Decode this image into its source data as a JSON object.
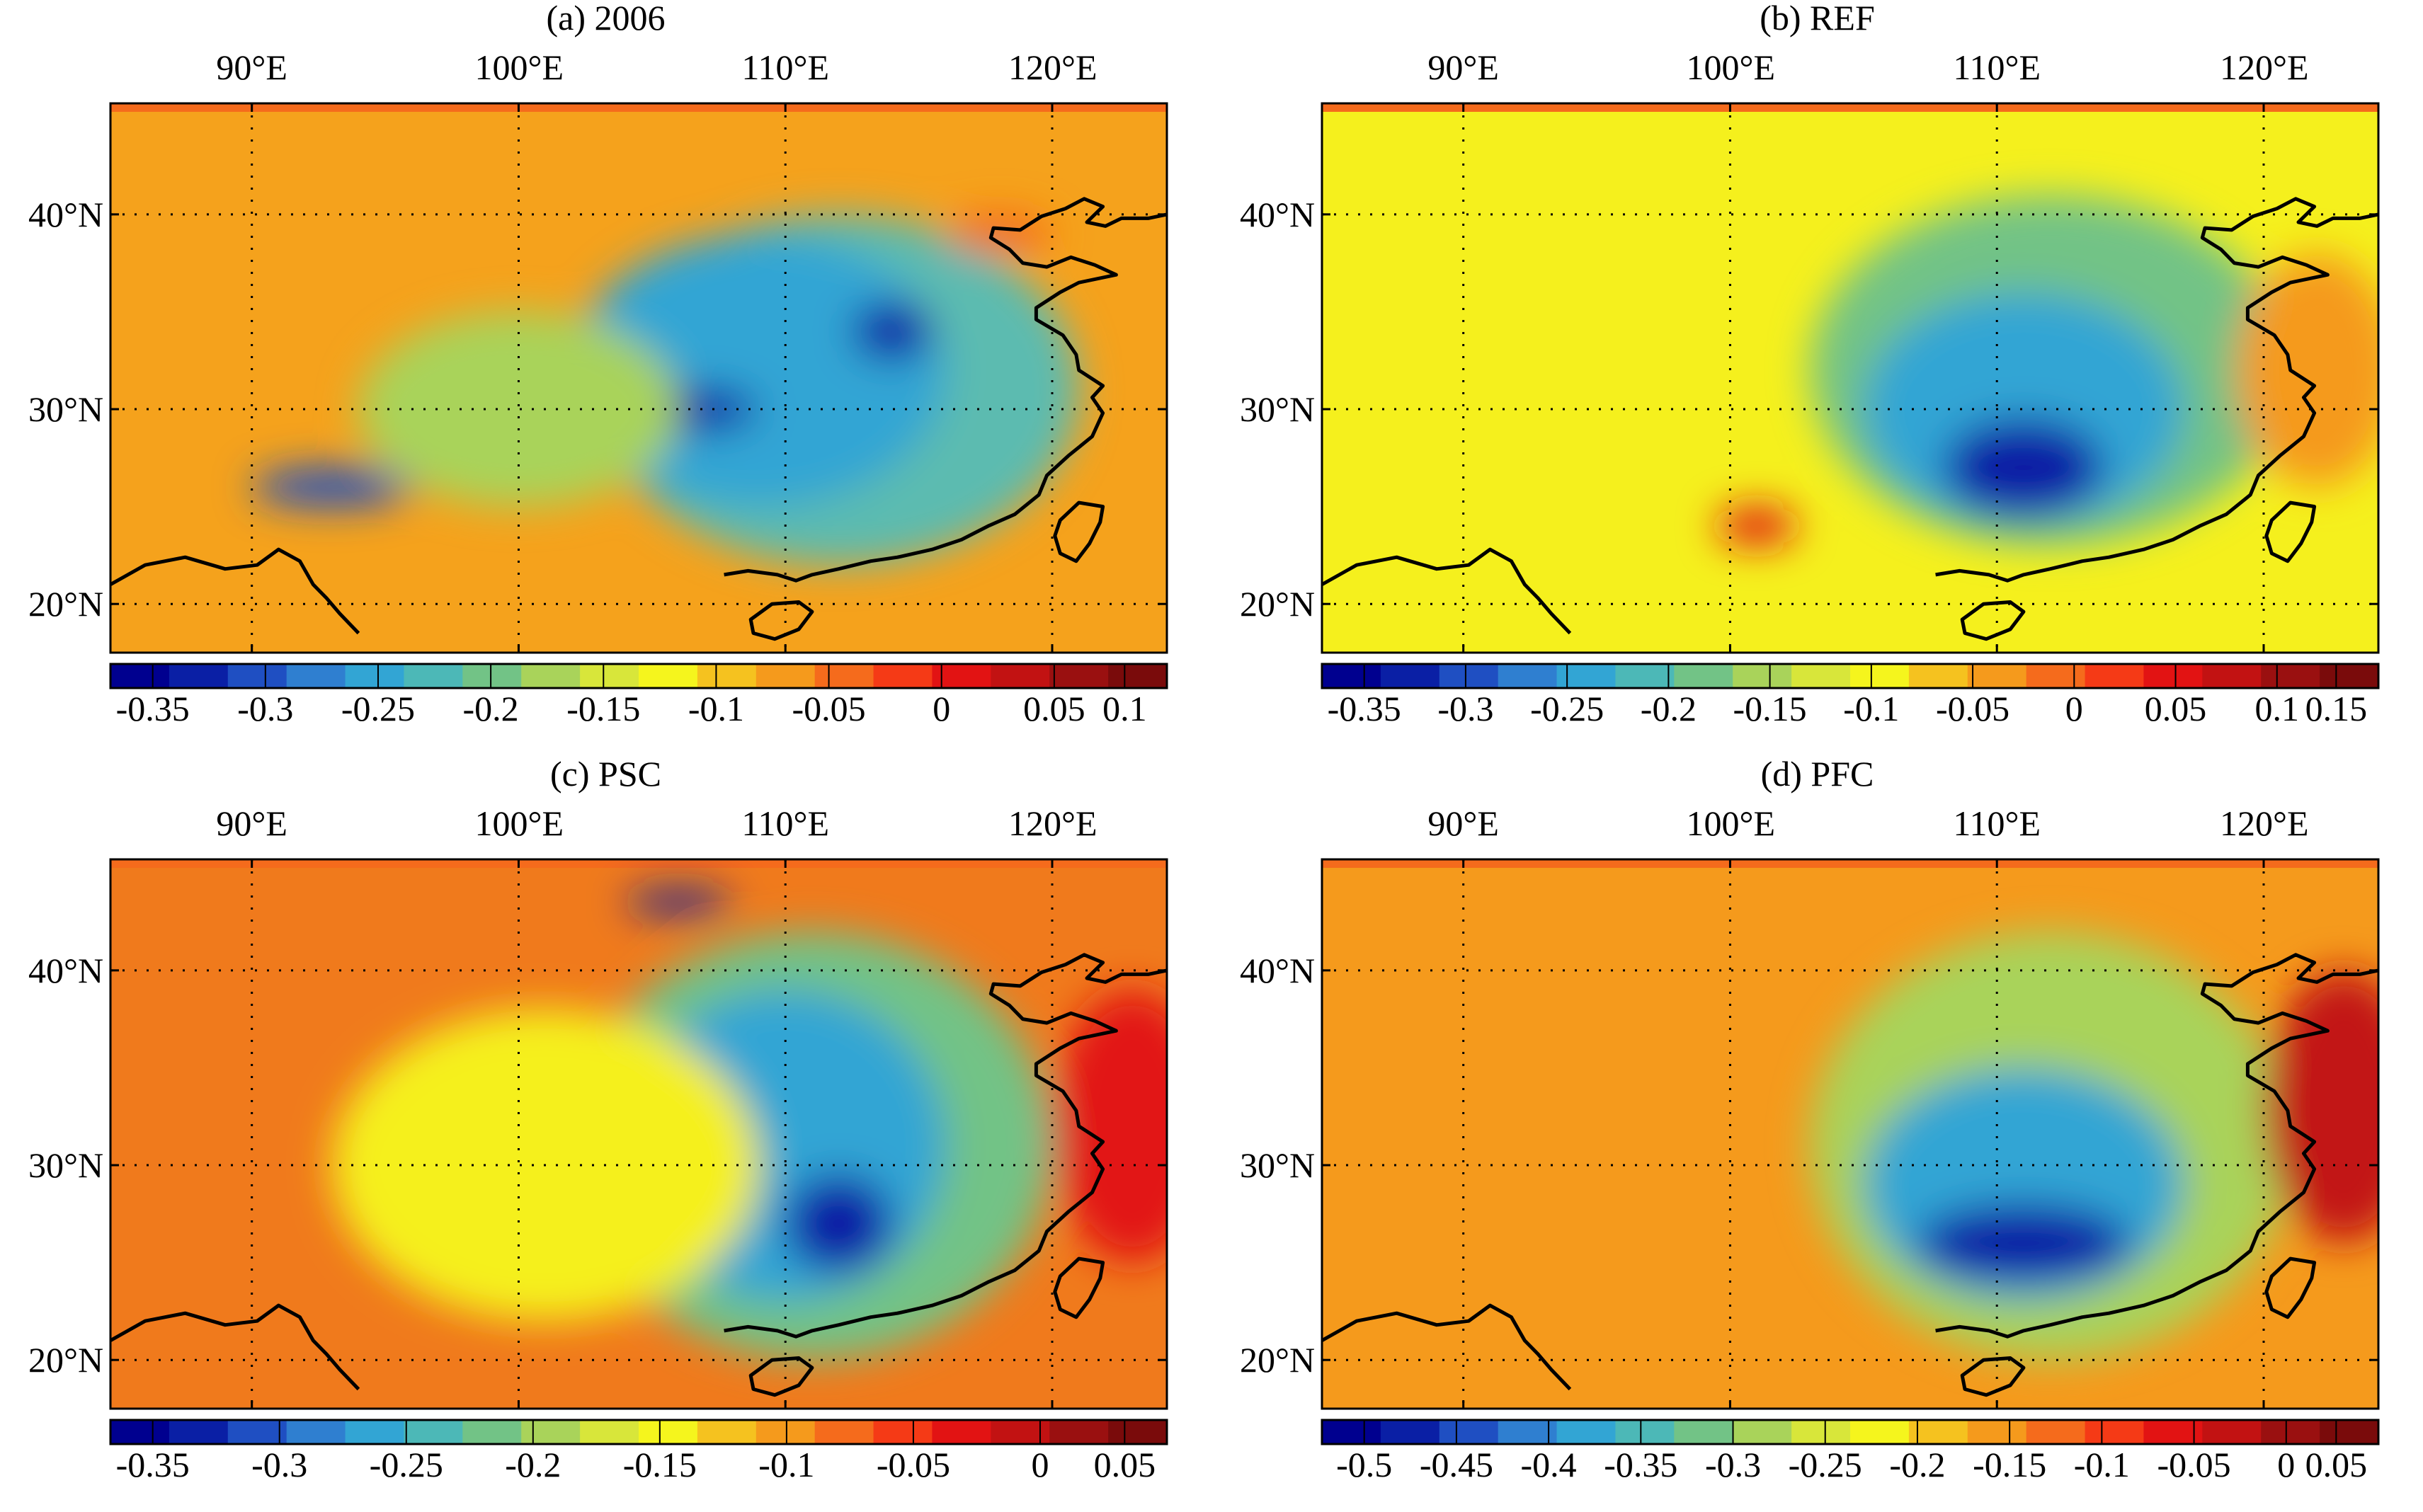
{
  "panels": [
    {
      "id": "a",
      "title": "(a) 2006",
      "lon_labels": [
        "90°E",
        "100°E",
        "110°E",
        "120°E"
      ],
      "lat_labels": [
        "40°N",
        "30°N",
        "20°N"
      ],
      "colorbar": {
        "ticks": [
          "-0.35",
          "-0.3",
          "-0.25",
          "-0.2",
          "-0.15",
          "-0.1",
          "-0.05",
          "0",
          "0.05",
          "0.1"
        ],
        "colors": [
          "#00008f",
          "#0a1fa5",
          "#1f4fc2",
          "#2f7fd0",
          "#32a5d4",
          "#4cb8b7",
          "#72c386",
          "#a9d35a",
          "#d8e63a",
          "#f5f51d",
          "#f5c21f",
          "#f59a1c",
          "#f56b1c",
          "#f53a16",
          "#e21313",
          "#c21212",
          "#9a1010",
          "#7a0b0b"
        ]
      },
      "field": {
        "background": "#f5a21c",
        "blobs": [
          {
            "lon": 112,
            "lat": 31,
            "rx": 9,
            "ry": 9,
            "color": "#5bbbb0"
          },
          {
            "lon": 109,
            "lat": 32,
            "rx": 7,
            "ry": 7,
            "color": "#32a5d4"
          },
          {
            "lon": 106,
            "lat": 30,
            "rx": 3,
            "ry": 1.2,
            "color": "#0a1fa5"
          },
          {
            "lon": 114,
            "lat": 34,
            "rx": 1.5,
            "ry": 1.5,
            "color": "#0a1fa5"
          },
          {
            "lon": 93,
            "lat": 26,
            "rx": 3,
            "ry": 1,
            "color": "#1f4fc2"
          },
          {
            "lon": 100,
            "lat": 30,
            "rx": 6,
            "ry": 5,
            "color": "#a9d35a"
          },
          {
            "lon": 118,
            "lat": 39,
            "rx": 2,
            "ry": 1,
            "color": "#f56b1c"
          }
        ]
      }
    },
    {
      "id": "b",
      "title": "(b) REF",
      "lon_labels": [
        "90°E",
        "100°E",
        "110°E",
        "120°E"
      ],
      "lat_labels": [
        "40°N",
        "30°N",
        "20°N"
      ],
      "colorbar": {
        "ticks": [
          "-0.35",
          "-0.3",
          "-0.25",
          "-0.2",
          "-0.15",
          "-0.1",
          "-0.05",
          "0",
          "0.05",
          "0.1",
          "0.15"
        ],
        "colors": [
          "#00008f",
          "#0a1fa5",
          "#1f4fc2",
          "#2f7fd0",
          "#32a5d4",
          "#4cb8b7",
          "#72c386",
          "#a9d35a",
          "#d8e63a",
          "#f5f51d",
          "#f5c21f",
          "#f59a1c",
          "#f56b1c",
          "#f53a16",
          "#e21313",
          "#c21212",
          "#9a1010",
          "#7a0b0b"
        ]
      },
      "field": {
        "background": "#f5f01d",
        "blobs": [
          {
            "lon": 112,
            "lat": 32,
            "rx": 9,
            "ry": 9,
            "color": "#72c386"
          },
          {
            "lon": 111,
            "lat": 30,
            "rx": 6,
            "ry": 6,
            "color": "#32a5d4"
          },
          {
            "lon": 111,
            "lat": 27,
            "rx": 3,
            "ry": 2.5,
            "color": "#0a1fa5"
          },
          {
            "lon": 122,
            "lat": 32,
            "rx": 3,
            "ry": 6,
            "color": "#f59a1c"
          },
          {
            "lon": 101,
            "lat": 24,
            "rx": 1.5,
            "ry": 1,
            "color": "#e21313"
          }
        ]
      }
    },
    {
      "id": "c",
      "title": "(c) PSC",
      "lon_labels": [
        "90°E",
        "100°E",
        "110°E",
        "120°E"
      ],
      "lat_labels": [
        "40°N",
        "30°N",
        "20°N"
      ],
      "colorbar": {
        "ticks": [
          "-0.35",
          "-0.3",
          "-0.25",
          "-0.2",
          "-0.15",
          "-0.1",
          "-0.05",
          "0",
          "0.05"
        ],
        "colors": [
          "#00008f",
          "#0a1fa5",
          "#1f4fc2",
          "#2f7fd0",
          "#32a5d4",
          "#4cb8b7",
          "#72c386",
          "#a9d35a",
          "#d8e63a",
          "#f5f51d",
          "#f5c21f",
          "#f59a1c",
          "#f56b1c",
          "#f53a16",
          "#e21313",
          "#c21212",
          "#9a1010",
          "#7a0b0b"
        ]
      },
      "field": {
        "background": "#f07a1c",
        "blobs": [
          {
            "lon": 111,
            "lat": 31,
            "rx": 9,
            "ry": 11,
            "color": "#72c386"
          },
          {
            "lon": 110,
            "lat": 31,
            "rx": 6,
            "ry": 8,
            "color": "#32a5d4"
          },
          {
            "lon": 112,
            "lat": 27,
            "rx": 2,
            "ry": 2.5,
            "color": "#0a1fa5"
          },
          {
            "lon": 101,
            "lat": 30,
            "rx": 8,
            "ry": 8,
            "color": "#f5f01d"
          },
          {
            "lon": 123,
            "lat": 32,
            "rx": 3,
            "ry": 7,
            "color": "#e21313"
          },
          {
            "lon": 106,
            "lat": 43.5,
            "rx": 2,
            "ry": 0.6,
            "color": "#0a1fa5"
          }
        ]
      }
    },
    {
      "id": "d",
      "title": "(d) PFC",
      "lon_labels": [
        "90°E",
        "100°E",
        "110°E",
        "120°E"
      ],
      "lat_labels": [
        "40°N",
        "30°N",
        "20°N"
      ],
      "colorbar": {
        "ticks": [
          "-0.5",
          "-0.45",
          "-0.4",
          "-0.35",
          "-0.3",
          "-0.25",
          "-0.2",
          "-0.15",
          "-0.1",
          "-0.05",
          "0",
          "0.05"
        ],
        "colors": [
          "#00008f",
          "#0a1fa5",
          "#1f4fc2",
          "#2f7fd0",
          "#32a5d4",
          "#4cb8b7",
          "#72c386",
          "#a9d35a",
          "#d8e63a",
          "#f5f51d",
          "#f5c21f",
          "#f59a1c",
          "#f56b1c",
          "#f53a16",
          "#e21313",
          "#c21212",
          "#9a1010",
          "#7a0b0b"
        ]
      },
      "field": {
        "background": "#f59a1c",
        "blobs": [
          {
            "lon": 112,
            "lat": 31,
            "rx": 9,
            "ry": 11,
            "color": "#a9d35a"
          },
          {
            "lon": 111,
            "lat": 29,
            "rx": 6,
            "ry": 6,
            "color": "#32a5d4"
          },
          {
            "lon": 111,
            "lat": 26,
            "rx": 4,
            "ry": 2,
            "color": "#0a1fa5"
          },
          {
            "lon": 123,
            "lat": 33,
            "rx": 3,
            "ry": 7,
            "color": "#c21212"
          }
        ]
      }
    }
  ]
}
